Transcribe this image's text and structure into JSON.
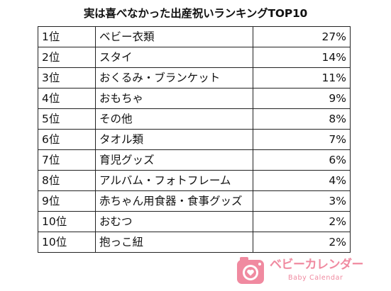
{
  "title": "実は喜べなかった出産祝いランキングTOP10",
  "rows": [
    {
      "rank": "1位",
      "item": "ベビー衣類",
      "percent": "27%"
    },
    {
      "rank": "2位",
      "item": "スタイ",
      "percent": "14%"
    },
    {
      "rank": "3位",
      "item": "おくるみ・ブランケット",
      "percent": "11%"
    },
    {
      "rank": "4位",
      "item": "おもちゃ",
      "percent": "9%"
    },
    {
      "rank": "5位",
      "item": "その他",
      "percent": "8%"
    },
    {
      "rank": "6位",
      "item": "タオル類",
      "percent": "7%"
    },
    {
      "rank": "7位",
      "item": "育児グッズ",
      "percent": "6%"
    },
    {
      "rank": "8位",
      "item": "アルバム・フォトフレーム",
      "percent": "4%"
    },
    {
      "rank": "9位",
      "item": "赤ちゃん用食器・食事グッズ",
      "percent": "3%"
    },
    {
      "rank": "10位",
      "item": "おむつ",
      "percent": "2%"
    },
    {
      "rank": "10位",
      "item": "抱っこ紐",
      "percent": "2%"
    }
  ],
  "logo": {
    "name": "ベビーカレンダー",
    "subtitle": "Baby Calendar",
    "color": "#f08aa0",
    "icon": "camera-heart-icon"
  }
}
